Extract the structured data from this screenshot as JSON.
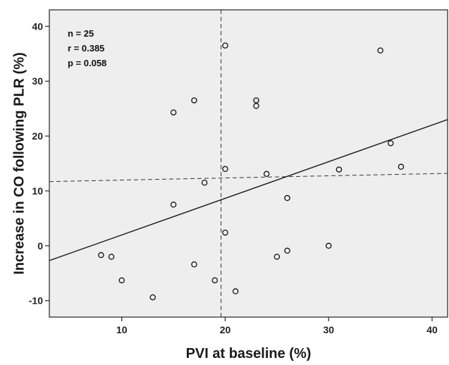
{
  "chart_data": {
    "type": "scatter",
    "title": "",
    "xlabel": "PVI at baseline (%)",
    "ylabel": "Increase in CO following PLR (%)",
    "xlim": [
      3,
      41.5
    ],
    "ylim": [
      -13,
      43
    ],
    "xticks": [
      10,
      20,
      30,
      40
    ],
    "yticks": [
      -10,
      0,
      10,
      20,
      30,
      40
    ],
    "grid": false,
    "plot_background": "#eeeeee",
    "marker": "open-circle",
    "series": [
      {
        "points": [
          {
            "x": 8,
            "y": -1.7
          },
          {
            "x": 9,
            "y": -2
          },
          {
            "x": 10,
            "y": -6.3
          },
          {
            "x": 13,
            "y": -9.4
          },
          {
            "x": 15,
            "y": 24.3
          },
          {
            "x": 15,
            "y": 7.5
          },
          {
            "x": 17,
            "y": 26.5
          },
          {
            "x": 17,
            "y": -3.4
          },
          {
            "x": 18,
            "y": 11.5
          },
          {
            "x": 19,
            "y": -6.3
          },
          {
            "x": 20,
            "y": 36.5
          },
          {
            "x": 20,
            "y": 14
          },
          {
            "x": 20,
            "y": 2.4
          },
          {
            "x": 21,
            "y": -8.3
          },
          {
            "x": 23,
            "y": 26.5
          },
          {
            "x": 23,
            "y": 25.5
          },
          {
            "x": 24,
            "y": 13.1
          },
          {
            "x": 25,
            "y": -2
          },
          {
            "x": 26,
            "y": 8.7
          },
          {
            "x": 26,
            "y": -0.9
          },
          {
            "x": 30,
            "y": 0
          },
          {
            "x": 31,
            "y": 13.9
          },
          {
            "x": 35,
            "y": 35.6
          },
          {
            "x": 36,
            "y": 18.7
          },
          {
            "x": 37,
            "y": 14.4
          }
        ]
      }
    ],
    "regression_line": {
      "x": [
        3,
        41.5
      ],
      "y": [
        -2.7,
        23
      ]
    },
    "reference_lines": {
      "vertical_x": 19.6,
      "horizontal_dashed": {
        "x": [
          3,
          41.5
        ],
        "y": [
          11.7,
          13.2
        ]
      }
    },
    "annotations": [
      "n = 25",
      "r = 0.385",
      "p = 0.058"
    ]
  }
}
